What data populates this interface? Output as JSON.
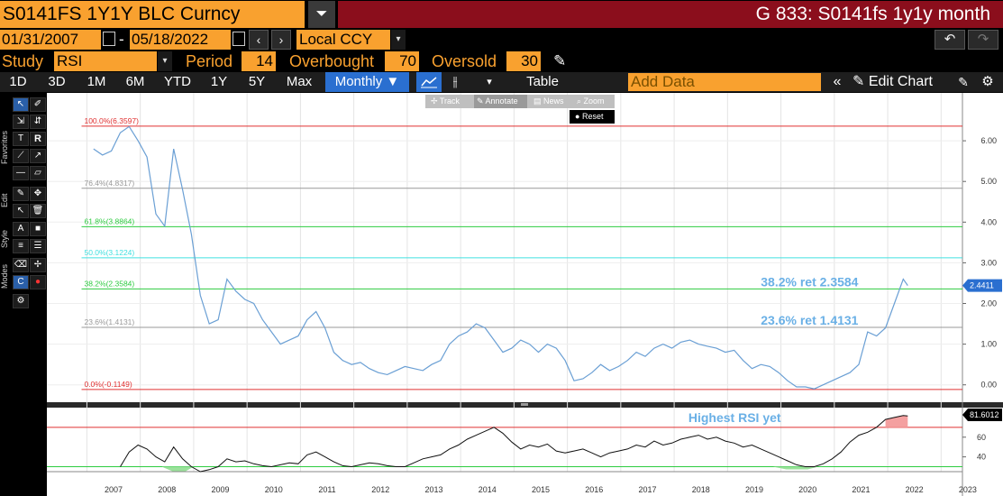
{
  "header": {
    "security": "S0141FS 1Y1Y BLC Curncy",
    "title": "G 833: S0141fs 1y1y month"
  },
  "daterange": {
    "start": "01/31/2007",
    "dash": "-",
    "end": "05/18/2022",
    "currency": "Local CCY"
  },
  "study": {
    "label": "Study",
    "value": "RSI",
    "period_label": "Period",
    "period": "14",
    "overbought_label": "Overbought",
    "overbought": "70",
    "oversold_label": "Oversold",
    "oversold": "30"
  },
  "toolbar": {
    "ranges": [
      "1D",
      "3D",
      "1M",
      "6M",
      "YTD",
      "1Y",
      "5Y",
      "Max"
    ],
    "frequency": "Monthly ▼",
    "table": "Table",
    "add_data_placeholder": "Add Data",
    "edit_chart": "Edit Chart"
  },
  "modes": {
    "track": "Track",
    "annotate": "Annotate",
    "news": "News",
    "zoom": "Zoom",
    "reset": "Reset"
  },
  "sidebar_tabs": [
    "Favorites",
    "Edit",
    "Style",
    "Modes"
  ],
  "colors": {
    "orange": "#f9a12f",
    "title_red": "#8b0e1c",
    "price_line": "#6a9fd4",
    "fib_red": "#e03030",
    "fib_grey": "#999999",
    "fib_green": "#2ecc40",
    "fib_cyan": "#40e0e0",
    "annotation_blue": "#6ab0e6"
  },
  "chart_data": [
    {
      "type": "line",
      "name": "price",
      "x": [
        "2007-02",
        "2007-04",
        "2007-06",
        "2007-08",
        "2007-10",
        "2007-12",
        "2008-02",
        "2008-04",
        "2008-06",
        "2008-08",
        "2008-10",
        "2008-12",
        "2009-02",
        "2009-04",
        "2009-06",
        "2009-08",
        "2009-10",
        "2009-12",
        "2010-02",
        "2010-04",
        "2010-06",
        "2010-08",
        "2010-10",
        "2010-12",
        "2011-02",
        "2011-04",
        "2011-06",
        "2011-08",
        "2011-10",
        "2011-12",
        "2012-02",
        "2012-04",
        "2012-06",
        "2012-08",
        "2012-10",
        "2012-12",
        "2013-02",
        "2013-04",
        "2013-06",
        "2013-08",
        "2013-10",
        "2013-12",
        "2014-02",
        "2014-04",
        "2014-06",
        "2014-08",
        "2014-10",
        "2014-12",
        "2015-02",
        "2015-04",
        "2015-06",
        "2015-08",
        "2015-10",
        "2015-12",
        "2016-02",
        "2016-04",
        "2016-06",
        "2016-08",
        "2016-10",
        "2016-12",
        "2017-02",
        "2017-04",
        "2017-06",
        "2017-08",
        "2017-10",
        "2017-12",
        "2018-02",
        "2018-04",
        "2018-06",
        "2018-08",
        "2018-10",
        "2018-12",
        "2019-02",
        "2019-04",
        "2019-06",
        "2019-08",
        "2019-10",
        "2019-12",
        "2020-02",
        "2020-04",
        "2020-06",
        "2020-08",
        "2020-10",
        "2020-12",
        "2021-02",
        "2021-04",
        "2021-06",
        "2021-08",
        "2021-10",
        "2021-12",
        "2022-02",
        "2022-04",
        "2022-05"
      ],
      "y": [
        5.8,
        5.65,
        5.75,
        6.2,
        6.35,
        6.0,
        5.6,
        4.2,
        3.9,
        5.8,
        4.8,
        3.7,
        2.2,
        1.5,
        1.6,
        2.6,
        2.3,
        2.1,
        2.0,
        1.6,
        1.3,
        1.0,
        1.1,
        1.2,
        1.6,
        1.8,
        1.4,
        0.8,
        0.6,
        0.5,
        0.55,
        0.4,
        0.3,
        0.25,
        0.35,
        0.45,
        0.4,
        0.35,
        0.5,
        0.6,
        1.0,
        1.2,
        1.3,
        1.5,
        1.4,
        1.1,
        0.8,
        0.9,
        1.1,
        1.0,
        0.8,
        1.0,
        0.9,
        0.6,
        0.1,
        0.15,
        0.3,
        0.5,
        0.35,
        0.45,
        0.6,
        0.8,
        0.7,
        0.9,
        1.0,
        0.9,
        1.05,
        1.1,
        1.0,
        0.95,
        0.9,
        0.8,
        0.85,
        0.6,
        0.4,
        0.5,
        0.45,
        0.3,
        0.1,
        -0.05,
        -0.05,
        -0.1,
        0.0,
        0.1,
        0.2,
        0.3,
        0.5,
        1.3,
        1.2,
        1.4,
        2.0,
        2.6,
        2.4411
      ],
      "last_value": "2.4411",
      "ylim": [
        -0.25,
        7.0
      ],
      "yticks": [
        "6.00",
        "5.00",
        "4.00",
        "3.00",
        "2.00",
        "1.00",
        "0.00"
      ],
      "fib_levels": [
        {
          "label": "100.0%(6.3597)",
          "value": 6.3597,
          "color": "#e03030"
        },
        {
          "label": "76.4%(4.8317)",
          "value": 4.8317,
          "color": "#999999"
        },
        {
          "label": "61.8%(3.8864)",
          "value": 3.8864,
          "color": "#2ecc40"
        },
        {
          "label": "50.0%(3.1224)",
          "value": 3.1224,
          "color": "#40e0e0"
        },
        {
          "label": "38.2%(2.3584)",
          "value": 2.3584,
          "color": "#2ecc40"
        },
        {
          "label": "23.6%(1.4131)",
          "value": 1.4131,
          "color": "#999999"
        },
        {
          "label": "0.0%(-0.1149)",
          "value": -0.1149,
          "color": "#e03030"
        }
      ],
      "annotations": [
        {
          "text": "38.2% ret 2.3584",
          "value": 2.3584
        },
        {
          "text": "23.6% ret 1.4131",
          "value": 1.4131
        }
      ]
    },
    {
      "type": "line",
      "name": "RSI",
      "x": [
        "2007-08",
        "2007-10",
        "2007-12",
        "2008-02",
        "2008-04",
        "2008-06",
        "2008-08",
        "2008-10",
        "2008-12",
        "2009-02",
        "2009-04",
        "2009-06",
        "2009-08",
        "2009-10",
        "2009-12",
        "2010-02",
        "2010-04",
        "2010-06",
        "2010-08",
        "2010-10",
        "2010-12",
        "2011-02",
        "2011-04",
        "2011-06",
        "2011-08",
        "2011-10",
        "2011-12",
        "2012-02",
        "2012-04",
        "2012-06",
        "2012-08",
        "2012-10",
        "2012-12",
        "2013-02",
        "2013-04",
        "2013-06",
        "2013-08",
        "2013-10",
        "2013-12",
        "2014-02",
        "2014-04",
        "2014-06",
        "2014-08",
        "2014-10",
        "2014-12",
        "2015-02",
        "2015-04",
        "2015-06",
        "2015-08",
        "2015-10",
        "2015-12",
        "2016-02",
        "2016-04",
        "2016-06",
        "2016-08",
        "2016-10",
        "2016-12",
        "2017-02",
        "2017-04",
        "2017-06",
        "2017-08",
        "2017-10",
        "2017-12",
        "2018-02",
        "2018-04",
        "2018-06",
        "2018-08",
        "2018-10",
        "2018-12",
        "2019-02",
        "2019-04",
        "2019-06",
        "2019-08",
        "2019-10",
        "2019-12",
        "2020-02",
        "2020-04",
        "2020-06",
        "2020-08",
        "2020-10",
        "2020-12",
        "2021-02",
        "2021-04",
        "2021-06",
        "2021-08",
        "2021-10",
        "2021-12",
        "2022-02",
        "2022-04",
        "2022-05"
      ],
      "y": [
        30,
        45,
        52,
        48,
        40,
        35,
        50,
        38,
        30,
        25,
        27,
        30,
        38,
        35,
        36,
        33,
        31,
        30,
        32,
        34,
        33,
        42,
        45,
        40,
        35,
        31,
        30,
        32,
        34,
        33,
        31,
        30,
        30,
        34,
        38,
        40,
        42,
        48,
        52,
        58,
        62,
        66,
        70,
        64,
        55,
        48,
        52,
        50,
        53,
        46,
        44,
        46,
        48,
        44,
        40,
        44,
        46,
        48,
        52,
        50,
        56,
        52,
        54,
        58,
        60,
        62,
        58,
        60,
        56,
        54,
        50,
        52,
        48,
        44,
        40,
        36,
        32,
        30,
        30,
        33,
        38,
        45,
        55,
        62,
        65,
        70,
        78,
        80,
        82,
        81.6012
      ],
      "last_value": "81.6012",
      "ylim": [
        25,
        90
      ],
      "yticks": [
        "60",
        "40"
      ],
      "overbought": 70,
      "oversold": 30,
      "annotation": "Highest RSI yet"
    }
  ],
  "xaxis": {
    "years": [
      "2007",
      "2008",
      "2009",
      "2010",
      "2011",
      "2012",
      "2013",
      "2014",
      "2015",
      "2016",
      "2017",
      "2018",
      "2019",
      "2020",
      "2021",
      "2022",
      "2023"
    ]
  }
}
